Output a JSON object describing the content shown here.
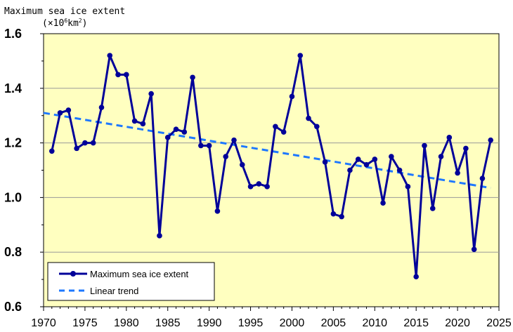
{
  "chart_data": {
    "type": "line",
    "ylabel_line1": "Maximum sea ice extent",
    "ylabel_unit_prefix": "(×10",
    "ylabel_unit_exp": "6",
    "ylabel_unit_mid": "km",
    "ylabel_unit_exp2": "2",
    "ylabel_unit_suffix": ")",
    "xlim": [
      1970,
      2025
    ],
    "ylim": [
      0.6,
      1.6
    ],
    "x_ticks": [
      1970,
      1975,
      1980,
      1985,
      1990,
      1995,
      2000,
      2005,
      2010,
      2015,
      2020,
      2025
    ],
    "y_ticks": [
      0.6,
      0.8,
      1.0,
      1.2,
      1.4,
      1.6
    ],
    "y_tick_labels": [
      "0.6",
      "0.8",
      "1.0",
      "1.2",
      "1.4",
      "1.6"
    ],
    "grid": "horizontal",
    "background_color": "#ffffc0",
    "series": [
      {
        "name": "Maximum sea ice extent",
        "color": "#000099",
        "x": [
          1971,
          1972,
          1973,
          1974,
          1975,
          1976,
          1977,
          1978,
          1979,
          1980,
          1981,
          1982,
          1983,
          1984,
          1985,
          1986,
          1987,
          1988,
          1989,
          1990,
          1991,
          1992,
          1993,
          1994,
          1995,
          1996,
          1997,
          1998,
          1999,
          2000,
          2001,
          2002,
          2003,
          2004,
          2005,
          2006,
          2007,
          2008,
          2009,
          2010,
          2011,
          2012,
          2013,
          2014,
          2015,
          2016,
          2017,
          2018,
          2019,
          2020,
          2021,
          2022,
          2023,
          2024
        ],
        "y": [
          1.17,
          1.31,
          1.32,
          1.18,
          1.2,
          1.2,
          1.33,
          1.52,
          1.45,
          1.45,
          1.28,
          1.27,
          1.38,
          0.86,
          1.22,
          1.25,
          1.24,
          1.44,
          1.19,
          1.19,
          0.95,
          1.15,
          1.21,
          1.12,
          1.04,
          1.05,
          1.04,
          1.26,
          1.24,
          1.37,
          1.52,
          1.29,
          1.26,
          1.13,
          0.94,
          0.93,
          1.1,
          1.14,
          1.12,
          1.14,
          0.98,
          1.15,
          1.1,
          1.04,
          0.71,
          1.19,
          0.96,
          1.15,
          1.22,
          1.09,
          1.18,
          0.81,
          1.07,
          1.21
        ]
      },
      {
        "name": "Linear trend",
        "color": "#1e78ff",
        "style": "dashed",
        "x": [
          1970,
          2024
        ],
        "y": [
          1.31,
          1.035
        ]
      }
    ],
    "legend_placement": "bottom-left"
  }
}
